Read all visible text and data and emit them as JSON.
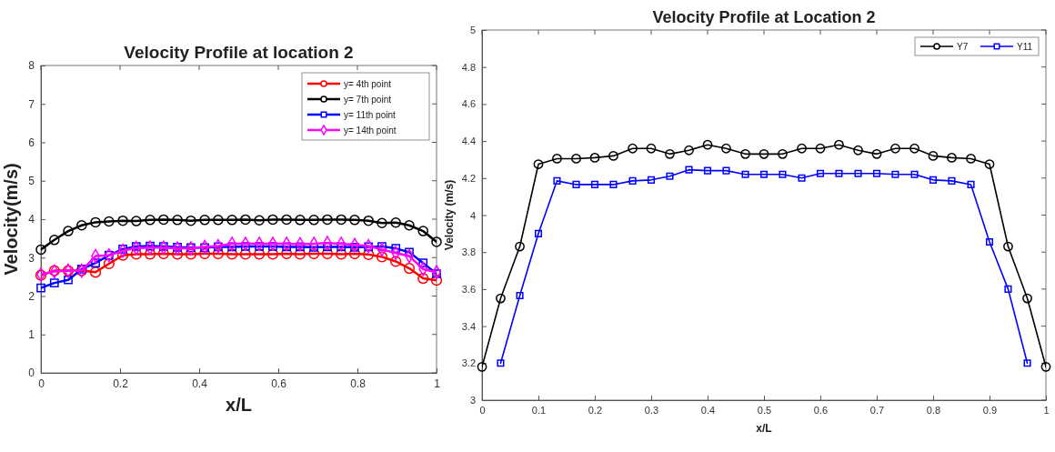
{
  "chart_data": [
    {
      "type": "line",
      "title": "Velocity Profile at location 2",
      "xlabel": "x/L",
      "ylabel": "Velocity(m/s)",
      "x": [
        0,
        0.034,
        0.069,
        0.103,
        0.138,
        0.172,
        0.207,
        0.241,
        0.276,
        0.31,
        0.345,
        0.379,
        0.414,
        0.448,
        0.483,
        0.517,
        0.552,
        0.586,
        0.621,
        0.655,
        0.69,
        0.724,
        0.759,
        0.793,
        0.828,
        0.862,
        0.897,
        0.931,
        0.966,
        1
      ],
      "xlim": [
        0,
        1
      ],
      "xticks": [
        0,
        0.2,
        0.4,
        0.6,
        0.8,
        1
      ],
      "ylim": [
        0,
        8
      ],
      "yticks": [
        0,
        1,
        2,
        3,
        4,
        5,
        6,
        7,
        8
      ],
      "legend": "top right",
      "grid": false,
      "series": [
        {
          "name": "y= 4th point",
          "color": "#ff0000",
          "marker": "circle",
          "values": [
            2.54,
            2.66,
            2.66,
            2.66,
            2.62,
            2.84,
            3.06,
            3.09,
            3.09,
            3.1,
            3.09,
            3.09,
            3.1,
            3.1,
            3.09,
            3.09,
            3.09,
            3.09,
            3.1,
            3.09,
            3.1,
            3.1,
            3.09,
            3.1,
            3.08,
            3.02,
            2.9,
            2.72,
            2.46,
            2.41
          ]
        },
        {
          "name": "y= 7th point",
          "color": "#000000",
          "marker": "circle",
          "values": [
            3.21,
            3.46,
            3.69,
            3.84,
            3.92,
            3.94,
            3.96,
            3.95,
            3.98,
            3.99,
            3.98,
            3.96,
            3.98,
            3.98,
            3.98,
            3.99,
            3.97,
            3.99,
            3.99,
            3.98,
            3.98,
            3.99,
            3.99,
            3.98,
            3.96,
            3.9,
            3.91,
            3.84,
            3.69,
            3.41
          ]
        },
        {
          "name": "y= 11th point",
          "color": "#0000ff",
          "marker": "square",
          "values": [
            2.21,
            2.34,
            2.42,
            2.7,
            2.86,
            3.06,
            3.22,
            3.29,
            3.3,
            3.29,
            3.27,
            3.26,
            3.26,
            3.28,
            3.28,
            3.29,
            3.29,
            3.29,
            3.28,
            3.28,
            3.27,
            3.28,
            3.28,
            3.27,
            3.28,
            3.29,
            3.24,
            3.14,
            2.86,
            2.58
          ]
        },
        {
          "name": "y= 14th point",
          "color": "#ff00ff",
          "marker": "diamond",
          "values": [
            2.56,
            2.64,
            2.66,
            2.66,
            3.04,
            3.06,
            3.18,
            3.25,
            3.26,
            3.26,
            3.24,
            3.24,
            3.28,
            3.3,
            3.36,
            3.36,
            3.36,
            3.36,
            3.36,
            3.35,
            3.36,
            3.38,
            3.36,
            3.33,
            3.3,
            3.21,
            3.12,
            3.04,
            2.7,
            2.62
          ]
        }
      ]
    },
    {
      "type": "line",
      "title": "Velocity Profile at Location 2",
      "xlabel": "x/L",
      "ylabel": "Velocity (m/s)",
      "x": [
        0,
        0.033,
        0.067,
        0.1,
        0.133,
        0.167,
        0.2,
        0.233,
        0.267,
        0.3,
        0.333,
        0.367,
        0.4,
        0.433,
        0.467,
        0.5,
        0.533,
        0.567,
        0.6,
        0.633,
        0.667,
        0.7,
        0.733,
        0.767,
        0.8,
        0.833,
        0.867,
        0.9,
        0.933,
        0.967,
        1
      ],
      "xlim": [
        0,
        1
      ],
      "xticks": [
        0,
        0.1,
        0.2,
        0.3,
        0.4,
        0.5,
        0.6,
        0.7,
        0.8,
        0.9,
        1
      ],
      "ylim": [
        3,
        5
      ],
      "yticks": [
        3,
        3.2,
        3.4,
        3.6,
        3.8,
        4,
        4.2,
        4.4,
        4.6,
        4.8,
        5
      ],
      "legend": "top right",
      "grid": false,
      "series": [
        {
          "name": "Y7",
          "color": "#000000",
          "marker": "circle",
          "values": [
            3.18,
            3.55,
            3.83,
            4.275,
            4.305,
            4.305,
            4.31,
            4.32,
            4.36,
            4.36,
            4.33,
            4.35,
            4.38,
            4.36,
            4.33,
            4.33,
            4.33,
            4.36,
            4.36,
            4.38,
            4.35,
            4.33,
            4.36,
            4.36,
            4.32,
            4.31,
            4.305,
            4.275,
            3.83,
            3.55,
            3.18
          ]
        },
        {
          "name": "Y11",
          "color": "#0000ff",
          "marker": "square",
          "values": [
            null,
            3.2,
            3.565,
            3.9,
            4.185,
            4.165,
            4.165,
            4.165,
            4.185,
            4.19,
            4.21,
            4.245,
            4.24,
            4.24,
            4.22,
            4.22,
            4.22,
            4.2,
            4.225,
            4.225,
            4.225,
            4.225,
            4.22,
            4.22,
            4.19,
            4.185,
            4.165,
            3.855,
            3.6,
            3.2,
            null
          ]
        }
      ]
    }
  ]
}
